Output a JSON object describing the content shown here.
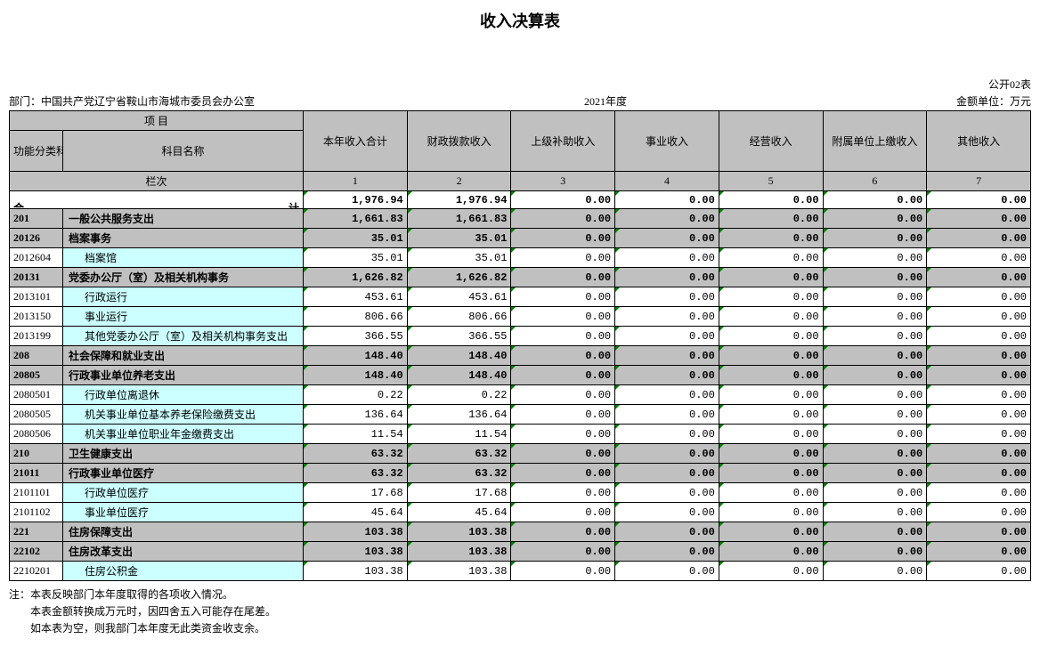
{
  "title": "收入决算表",
  "form_code": "公开02表",
  "dept_label": "部门：中国共产党辽宁省鞍山市海城市委员会办公室",
  "year_label": "2021年度",
  "unit_label": "金额单位：万元",
  "header": {
    "item": "项                                                              目",
    "code_header": "功能分类科目编码",
    "name_header": "科目名称",
    "cols": [
      "本年收入合计",
      "财政拨款收入",
      "上级补助收入",
      "事业收入",
      "经营收入",
      "附属单位上缴收入",
      "其他收入"
    ],
    "lanci": "栏次",
    "nums": [
      "1",
      "2",
      "3",
      "4",
      "5",
      "6",
      "7"
    ]
  },
  "sum_row": {
    "left": "合",
    "right": "计",
    "vals": [
      "1,976.94",
      "1,976.94",
      "0.00",
      "0.00",
      "0.00",
      "0.00",
      "0.00"
    ]
  },
  "rows": [
    {
      "code": "201",
      "name": "一般公共服务支出",
      "indent": 0,
      "gray": true,
      "cyan": false,
      "vals": [
        "1,661.83",
        "1,661.83",
        "0.00",
        "0.00",
        "0.00",
        "0.00",
        "0.00"
      ]
    },
    {
      "code": "20126",
      "name": "档案事务",
      "indent": 0,
      "gray": true,
      "cyan": false,
      "vals": [
        "35.01",
        "35.01",
        "0.00",
        "0.00",
        "0.00",
        "0.00",
        "0.00"
      ]
    },
    {
      "code": "2012604",
      "name": "档案馆",
      "indent": 1,
      "gray": false,
      "cyan": true,
      "vals": [
        "35.01",
        "35.01",
        "0.00",
        "0.00",
        "0.00",
        "0.00",
        "0.00"
      ]
    },
    {
      "code": "20131",
      "name": "党委办公厅（室）及相关机构事务",
      "indent": 0,
      "gray": true,
      "cyan": false,
      "vals": [
        "1,626.82",
        "1,626.82",
        "0.00",
        "0.00",
        "0.00",
        "0.00",
        "0.00"
      ]
    },
    {
      "code": "2013101",
      "name": "行政运行",
      "indent": 1,
      "gray": false,
      "cyan": true,
      "vals": [
        "453.61",
        "453.61",
        "0.00",
        "0.00",
        "0.00",
        "0.00",
        "0.00"
      ]
    },
    {
      "code": "2013150",
      "name": "事业运行",
      "indent": 1,
      "gray": false,
      "cyan": true,
      "vals": [
        "806.66",
        "806.66",
        "0.00",
        "0.00",
        "0.00",
        "0.00",
        "0.00"
      ]
    },
    {
      "code": "2013199",
      "name": "其他党委办公厅（室）及相关机构事务支出",
      "indent": 1,
      "gray": false,
      "cyan": true,
      "vals": [
        "366.55",
        "366.55",
        "0.00",
        "0.00",
        "0.00",
        "0.00",
        "0.00"
      ]
    },
    {
      "code": "208",
      "name": "社会保障和就业支出",
      "indent": 0,
      "gray": true,
      "cyan": false,
      "vals": [
        "148.40",
        "148.40",
        "0.00",
        "0.00",
        "0.00",
        "0.00",
        "0.00"
      ]
    },
    {
      "code": "20805",
      "name": "行政事业单位养老支出",
      "indent": 0,
      "gray": true,
      "cyan": false,
      "vals": [
        "148.40",
        "148.40",
        "0.00",
        "0.00",
        "0.00",
        "0.00",
        "0.00"
      ]
    },
    {
      "code": "2080501",
      "name": "行政单位离退休",
      "indent": 1,
      "gray": false,
      "cyan": true,
      "vals": [
        "0.22",
        "0.22",
        "0.00",
        "0.00",
        "0.00",
        "0.00",
        "0.00"
      ]
    },
    {
      "code": "2080505",
      "name": "机关事业单位基本养老保险缴费支出",
      "indent": 1,
      "gray": false,
      "cyan": true,
      "vals": [
        "136.64",
        "136.64",
        "0.00",
        "0.00",
        "0.00",
        "0.00",
        "0.00"
      ]
    },
    {
      "code": "2080506",
      "name": "机关事业单位职业年金缴费支出",
      "indent": 1,
      "gray": false,
      "cyan": true,
      "vals": [
        "11.54",
        "11.54",
        "0.00",
        "0.00",
        "0.00",
        "0.00",
        "0.00"
      ]
    },
    {
      "code": "210",
      "name": "卫生健康支出",
      "indent": 0,
      "gray": true,
      "cyan": false,
      "vals": [
        "63.32",
        "63.32",
        "0.00",
        "0.00",
        "0.00",
        "0.00",
        "0.00"
      ]
    },
    {
      "code": "21011",
      "name": "行政事业单位医疗",
      "indent": 0,
      "gray": true,
      "cyan": false,
      "vals": [
        "63.32",
        "63.32",
        "0.00",
        "0.00",
        "0.00",
        "0.00",
        "0.00"
      ]
    },
    {
      "code": "2101101",
      "name": "行政单位医疗",
      "indent": 1,
      "gray": false,
      "cyan": true,
      "vals": [
        "17.68",
        "17.68",
        "0.00",
        "0.00",
        "0.00",
        "0.00",
        "0.00"
      ]
    },
    {
      "code": "2101102",
      "name": "事业单位医疗",
      "indent": 1,
      "gray": false,
      "cyan": true,
      "vals": [
        "45.64",
        "45.64",
        "0.00",
        "0.00",
        "0.00",
        "0.00",
        "0.00"
      ]
    },
    {
      "code": "221",
      "name": "住房保障支出",
      "indent": 0,
      "gray": true,
      "cyan": false,
      "vals": [
        "103.38",
        "103.38",
        "0.00",
        "0.00",
        "0.00",
        "0.00",
        "0.00"
      ]
    },
    {
      "code": "22102",
      "name": "住房改革支出",
      "indent": 0,
      "gray": true,
      "cyan": false,
      "vals": [
        "103.38",
        "103.38",
        "0.00",
        "0.00",
        "0.00",
        "0.00",
        "0.00"
      ]
    },
    {
      "code": "2210201",
      "name": "住房公积金",
      "indent": 1,
      "gray": false,
      "cyan": true,
      "vals": [
        "103.38",
        "103.38",
        "0.00",
        "0.00",
        "0.00",
        "0.00",
        "0.00"
      ]
    }
  ],
  "notes": [
    "注：本表反映部门本年度取得的各项收入情况。",
    "本表金额转换成万元时，因四舍五入可能存在尾差。",
    "如本表为空，则我部门本年度无此类资金收支余。"
  ]
}
